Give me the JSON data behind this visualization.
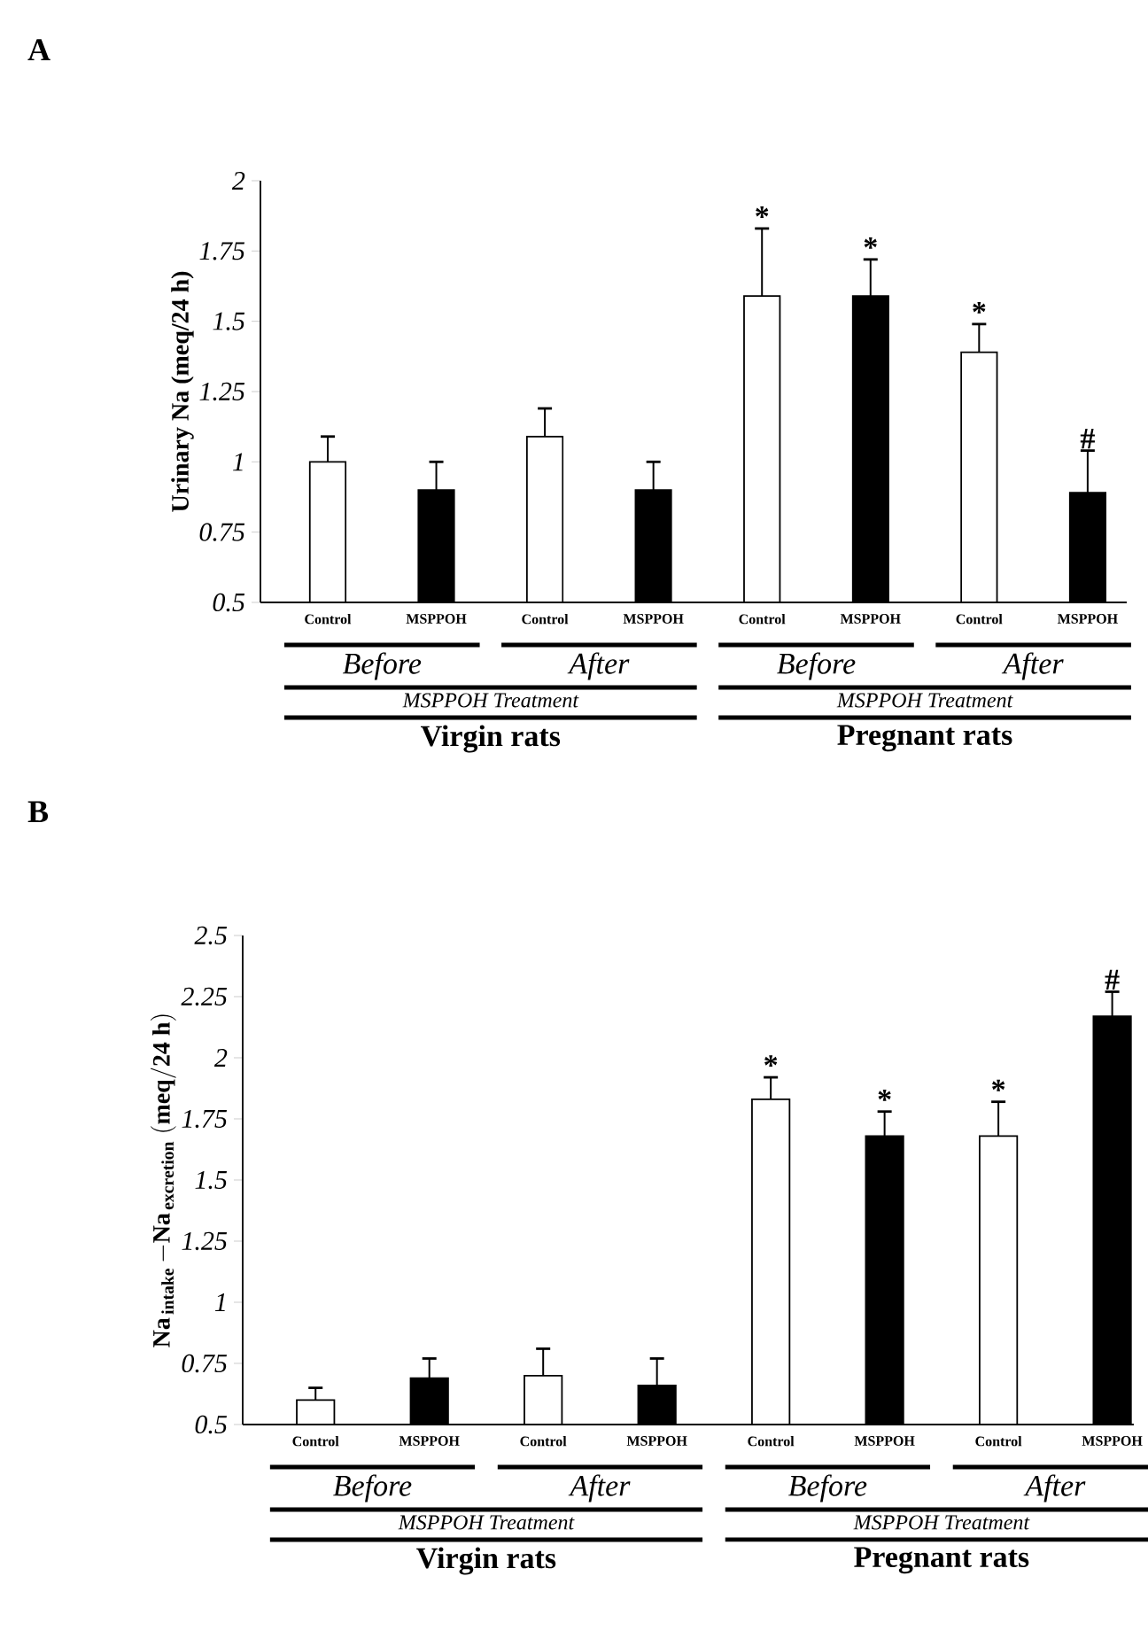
{
  "chart_data": [
    {
      "type": "bar",
      "title": "A",
      "ylabel": "Urinary Na (meq/24 h)",
      "categories": [
        "Control",
        "MSPPOH",
        "Control",
        "MSPPOH",
        "Control",
        "MSPPOH",
        "Control",
        "MSPPOH"
      ],
      "values": [
        1.0,
        0.9,
        1.09,
        0.9,
        1.59,
        1.59,
        1.39,
        0.89
      ],
      "colors": [
        "#ffffff",
        "#000000",
        "#ffffff",
        "#000000",
        "#ffffff",
        "#000000",
        "#ffffff",
        "#000000"
      ],
      "errors": [
        [
          1.0,
          1.09
        ],
        [
          0.9,
          1.0
        ],
        [
          1.09,
          1.19
        ],
        [
          0.9,
          1.0
        ],
        [
          1.59,
          1.83
        ],
        [
          1.59,
          1.72
        ],
        [
          1.39,
          1.49
        ],
        [
          0.89,
          1.04
        ]
      ],
      "value_labels": [
        null,
        null,
        null,
        null,
        "*",
        "*",
        "*",
        "#"
      ],
      "ylim": [
        0.5,
        2
      ],
      "yticks": [
        0.5,
        0.75,
        1,
        1.25,
        1.5,
        1.75,
        2
      ],
      "annotations": [
        "Before",
        "After",
        "MSPPOH Treatment",
        "Virgin rats",
        "Before",
        "After",
        "MSPPOH Treatment",
        "Pregnant rats"
      ]
    },
    {
      "type": "bar",
      "title": "B",
      "ylabel": "\\mathbf{Na}_{\\,\\mathbf{intake}}\\,\\mathbf{-Na}_{\\,\\mathbf{excretion}}\\ \\mathbf{(meq/24\\ h)}",
      "categories": [
        "Control",
        "MSPPOH",
        "Control",
        "MSPPOH",
        "Control",
        "MSPPOH",
        "Control",
        "MSPPOH"
      ],
      "values": [
        0.6,
        0.69,
        0.7,
        0.66,
        1.83,
        1.68,
        1.68,
        2.17
      ],
      "colors": [
        "#ffffff",
        "#000000",
        "#ffffff",
        "#000000",
        "#ffffff",
        "#000000",
        "#ffffff",
        "#000000"
      ],
      "errors": [
        [
          0.6,
          0.65
        ],
        [
          0.69,
          0.77
        ],
        [
          0.7,
          0.81
        ],
        [
          0.66,
          0.77
        ],
        [
          1.83,
          1.92
        ],
        [
          1.68,
          1.78
        ],
        [
          1.68,
          1.82
        ],
        [
          2.17,
          2.27
        ]
      ],
      "value_labels": [
        null,
        null,
        null,
        null,
        "*",
        "*",
        "*",
        "#"
      ],
      "ylim": [
        0.5,
        2.5
      ],
      "yticks": [
        0.5,
        0.75,
        1,
        1.25,
        1.5,
        1.75,
        2,
        2.25,
        2.5
      ],
      "annotations": [
        "Before",
        "After",
        "MSPPOH Treatment",
        "Virgin rats",
        "Before",
        "After",
        "MSPPOH Treatment",
        "Pregnant rats"
      ]
    }
  ]
}
